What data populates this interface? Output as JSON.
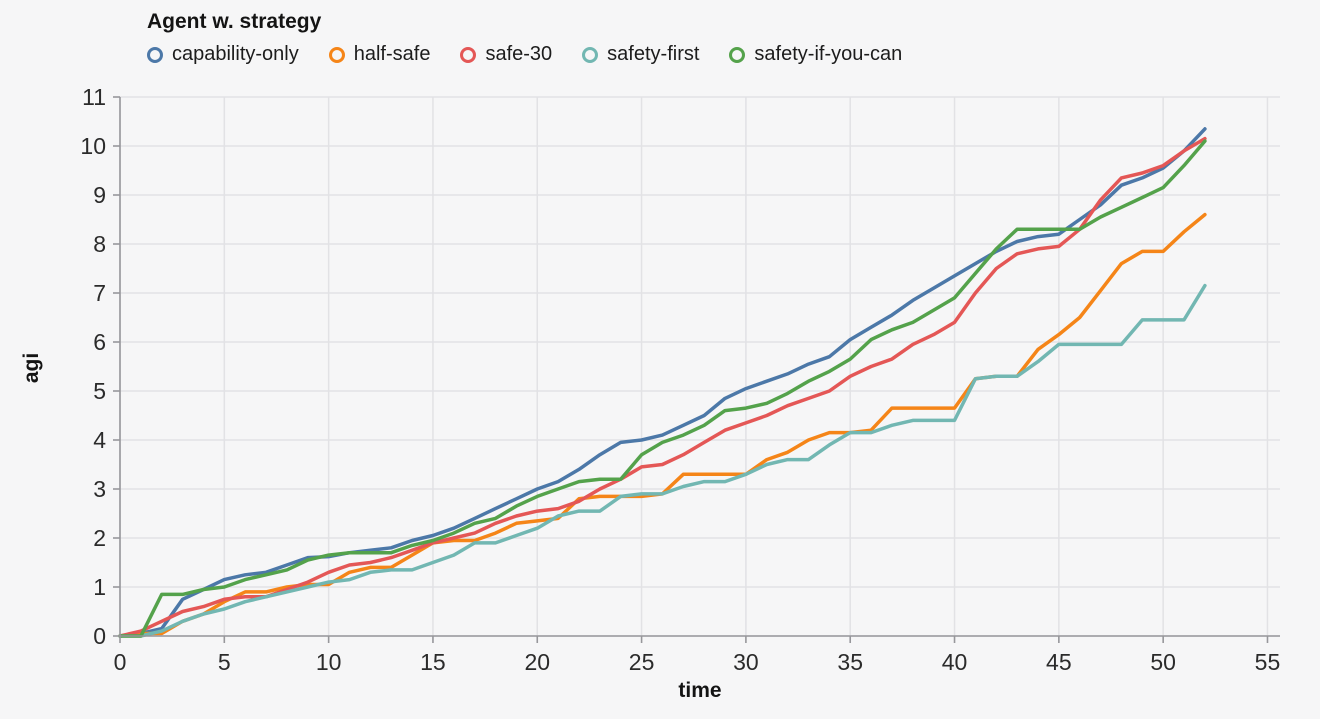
{
  "page": {
    "background_color": "#f6f6f7"
  },
  "legend": {
    "title": "Agent w. strategy",
    "items": [
      {
        "label": "capability-only",
        "color": "#4c78a8",
        "icon": "open-circle-icon"
      },
      {
        "label": "half-safe",
        "color": "#f58518",
        "icon": "open-circle-icon"
      },
      {
        "label": "safe-30",
        "color": "#e45756",
        "icon": "open-circle-icon"
      },
      {
        "label": "safety-first",
        "color": "#72b7b2",
        "icon": "open-circle-icon"
      },
      {
        "label": "safety-if-you-can",
        "color": "#54a24b",
        "icon": "open-circle-icon"
      }
    ]
  },
  "chart_data": {
    "type": "line",
    "title": "Agent w. strategy",
    "xlabel": "time",
    "ylabel": "agi",
    "xlim": [
      0,
      55.6
    ],
    "ylim": [
      0,
      11
    ],
    "x_ticks": [
      0,
      5,
      10,
      15,
      20,
      25,
      30,
      35,
      40,
      45,
      50,
      55
    ],
    "y_ticks": [
      0,
      1,
      2,
      3,
      4,
      5,
      6,
      7,
      8,
      9,
      10,
      11
    ],
    "grid": true,
    "legend_position": "top-left",
    "grid_color": "#e2e2e5",
    "axis_color": "#97979b",
    "tick_label_color": "#2b2b2b",
    "axis_title_color": "#141414",
    "x": [
      0,
      1,
      2,
      3,
      4,
      5,
      6,
      7,
      8,
      9,
      10,
      11,
      12,
      13,
      14,
      15,
      16,
      17,
      18,
      19,
      20,
      21,
      22,
      23,
      24,
      25,
      26,
      27,
      28,
      29,
      30,
      31,
      32,
      33,
      34,
      35,
      36,
      37,
      38,
      39,
      40,
      41,
      42,
      43,
      44,
      45,
      46,
      47,
      48,
      49,
      50,
      51,
      52
    ],
    "series": [
      {
        "name": "capability-only",
        "color": "#4c78a8",
        "values": [
          0,
          0.05,
          0.15,
          0.75,
          0.95,
          1.15,
          1.25,
          1.3,
          1.45,
          1.6,
          1.62,
          1.7,
          1.75,
          1.8,
          1.95,
          2.05,
          2.2,
          2.4,
          2.6,
          2.8,
          3.0,
          3.15,
          3.4,
          3.7,
          3.95,
          4.0,
          4.1,
          4.3,
          4.5,
          4.85,
          5.05,
          5.2,
          5.35,
          5.55,
          5.7,
          6.05,
          6.3,
          6.55,
          6.85,
          7.1,
          7.35,
          7.6,
          7.85,
          8.05,
          8.15,
          8.2,
          8.5,
          8.8,
          9.2,
          9.35,
          9.55,
          9.9,
          10.35
        ]
      },
      {
        "name": "half-safe",
        "color": "#f58518",
        "values": [
          0,
          0.05,
          0.05,
          0.3,
          0.45,
          0.7,
          0.9,
          0.9,
          1.0,
          1.05,
          1.05,
          1.3,
          1.4,
          1.4,
          1.65,
          1.9,
          1.95,
          1.95,
          2.1,
          2.3,
          2.35,
          2.4,
          2.8,
          2.85,
          2.85,
          2.85,
          2.9,
          3.3,
          3.3,
          3.3,
          3.3,
          3.6,
          3.75,
          4.0,
          4.15,
          4.15,
          4.2,
          4.65,
          4.65,
          4.65,
          4.65,
          5.25,
          5.3,
          5.3,
          5.85,
          6.15,
          6.5,
          7.05,
          7.6,
          7.85,
          7.85,
          8.25,
          8.6
        ]
      },
      {
        "name": "safe-30",
        "color": "#e45756",
        "values": [
          0,
          0.1,
          0.3,
          0.5,
          0.6,
          0.75,
          0.8,
          0.8,
          0.95,
          1.1,
          1.3,
          1.45,
          1.5,
          1.6,
          1.75,
          1.9,
          2.0,
          2.1,
          2.3,
          2.45,
          2.55,
          2.6,
          2.75,
          3.0,
          3.2,
          3.45,
          3.5,
          3.7,
          3.95,
          4.2,
          4.35,
          4.5,
          4.7,
          4.85,
          5.0,
          5.3,
          5.5,
          5.65,
          5.95,
          6.15,
          6.4,
          7.0,
          7.5,
          7.8,
          7.9,
          7.95,
          8.3,
          8.9,
          9.35,
          9.45,
          9.6,
          9.9,
          10.15
        ]
      },
      {
        "name": "safety-first",
        "color": "#72b7b2",
        "values": [
          0,
          0,
          0.1,
          0.3,
          0.45,
          0.55,
          0.7,
          0.8,
          0.9,
          1.0,
          1.1,
          1.15,
          1.3,
          1.35,
          1.35,
          1.5,
          1.65,
          1.9,
          1.9,
          2.05,
          2.2,
          2.45,
          2.55,
          2.55,
          2.85,
          2.9,
          2.9,
          3.05,
          3.15,
          3.15,
          3.3,
          3.5,
          3.6,
          3.6,
          3.9,
          4.15,
          4.15,
          4.3,
          4.4,
          4.4,
          4.4,
          5.25,
          5.3,
          5.3,
          5.6,
          5.95,
          5.95,
          5.95,
          5.95,
          6.45,
          6.45,
          6.45,
          7.15
        ]
      },
      {
        "name": "safety-if-you-can",
        "color": "#54a24b",
        "values": [
          0,
          0,
          0.85,
          0.85,
          0.95,
          1.0,
          1.15,
          1.25,
          1.35,
          1.55,
          1.65,
          1.7,
          1.7,
          1.7,
          1.85,
          1.95,
          2.1,
          2.3,
          2.4,
          2.65,
          2.85,
          3.0,
          3.15,
          3.2,
          3.2,
          3.7,
          3.95,
          4.1,
          4.3,
          4.6,
          4.65,
          4.75,
          4.95,
          5.2,
          5.4,
          5.65,
          6.05,
          6.25,
          6.4,
          6.65,
          6.9,
          7.4,
          7.9,
          8.3,
          8.3,
          8.3,
          8.3,
          8.55,
          8.75,
          8.95,
          9.15,
          9.6,
          10.1
        ]
      }
    ]
  }
}
